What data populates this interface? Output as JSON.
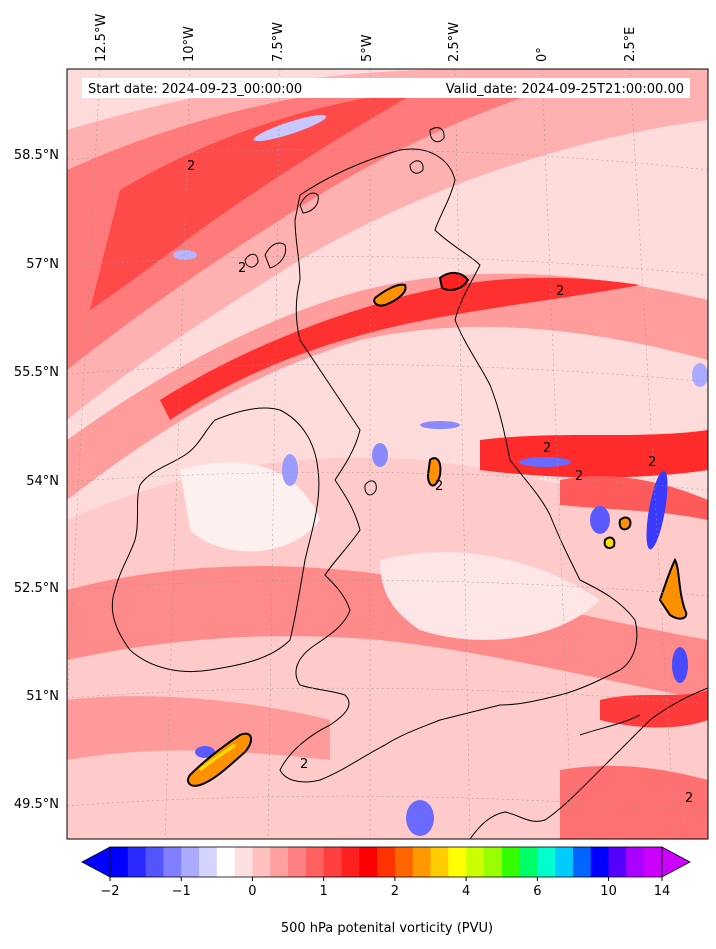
{
  "map": {
    "start_label": "Start date: 2024-09-23_00:00:00",
    "valid_label": "Valid_date: 2024-09-25T21:00:00.00",
    "lon_labels": [
      "12.5°W",
      "10°W",
      "7.5°W",
      "5°W",
      "2.5°W",
      "0°",
      "2.5°E"
    ],
    "lat_labels": [
      "58.5°N",
      "57°N",
      "55.5°N",
      "54°N",
      "52.5°N",
      "51°N",
      "49.5°N"
    ],
    "contour_label": "2"
  },
  "colorbar": {
    "label": "500 hPa potenital vorticity (PVU)",
    "tick_labels": [
      "−2",
      "−1",
      "0",
      "1",
      "2",
      "4",
      "6",
      "10",
      "14"
    ],
    "colors": [
      "#0000ff",
      "#2a2aff",
      "#5555ff",
      "#7f7fff",
      "#aaaaff",
      "#d4d4ff",
      "#ffffff",
      "#ffe0e0",
      "#ffc0c0",
      "#ffa0a0",
      "#ff8080",
      "#ff6060",
      "#ff4040",
      "#ff2020",
      "#ff0000",
      "#ff3300",
      "#ff6600",
      "#ff9900",
      "#ffcc00",
      "#ffff00",
      "#ccff00",
      "#99ff00",
      "#33ff00",
      "#00ff66",
      "#00ffcc",
      "#00ccff",
      "#0066ff",
      "#0000ff",
      "#5500ff",
      "#aa00ff",
      "#cc00ff"
    ]
  },
  "style": {
    "land_line": "#000000",
    "contour_fill": "#ff8c00",
    "background": "#ffe8e8"
  }
}
